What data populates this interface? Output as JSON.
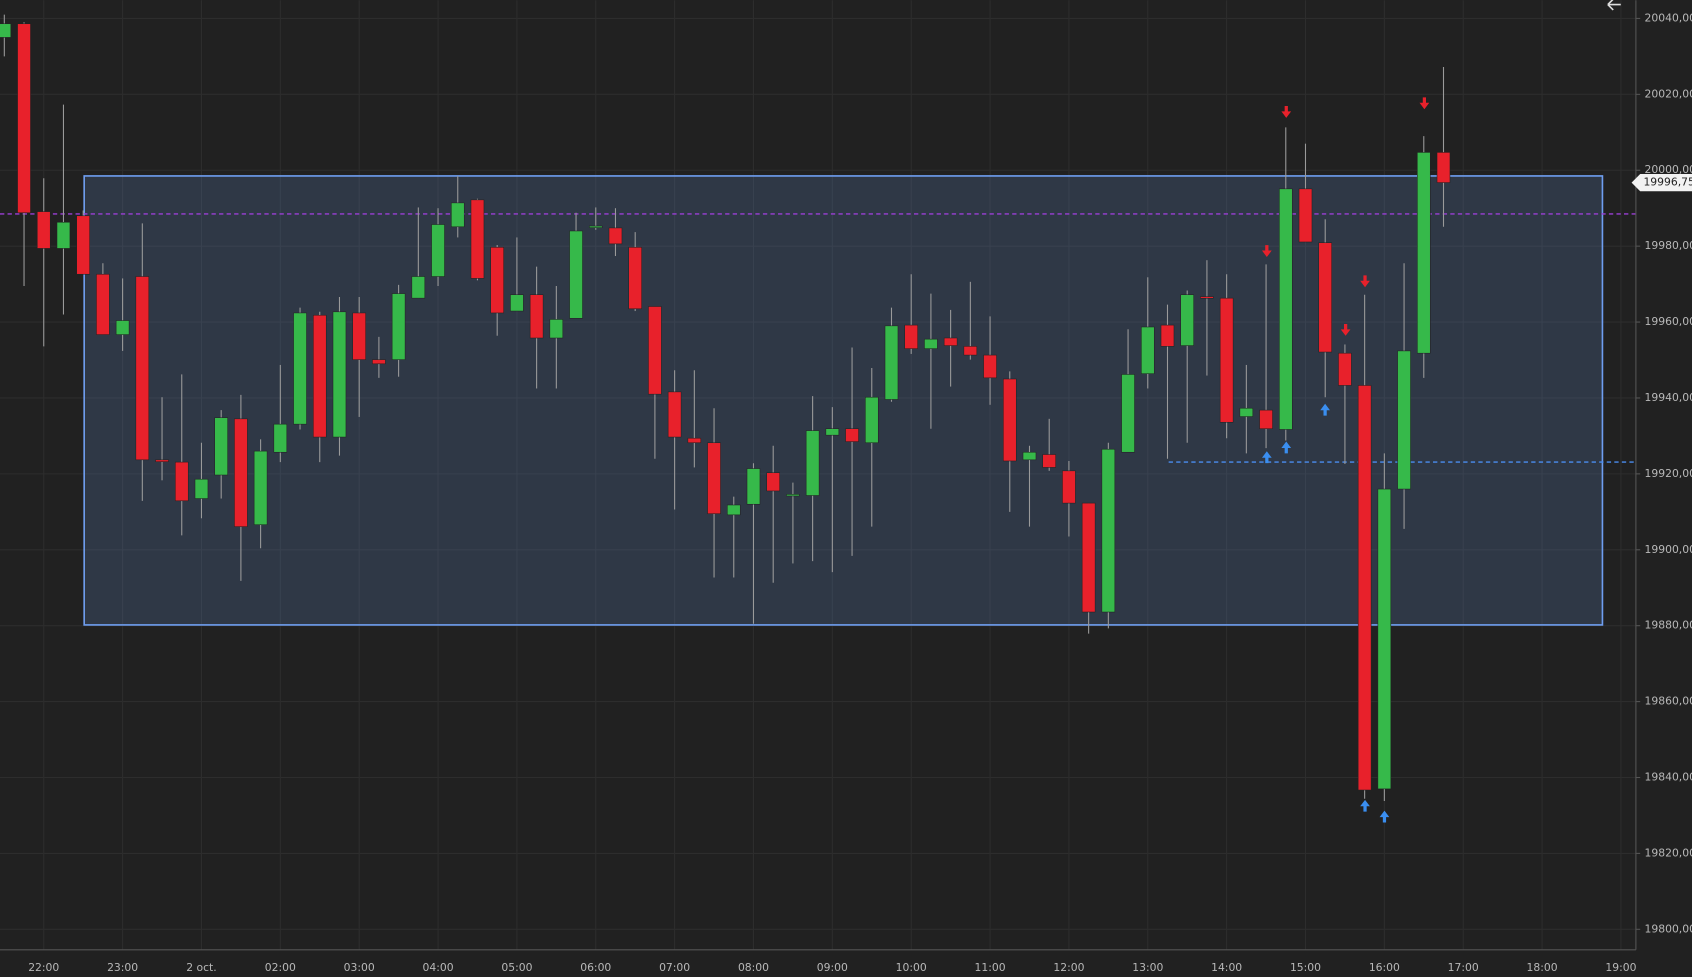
{
  "chart_data": {
    "type": "candlestick",
    "x_labels": [
      "22:00",
      "23:00",
      "2 oct.",
      "02:00",
      "03:00",
      "04:00",
      "05:00",
      "06:00",
      "07:00",
      "08:00",
      "09:00",
      "10:00",
      "11:00",
      "12:00",
      "13:00",
      "14:00",
      "15:00",
      "16:00",
      "17:00",
      "18:00",
      "19:00"
    ],
    "open": [
      20035,
      20038.6,
      19989.1,
      19979.4,
      19988,
      19972.6,
      19956.7,
      19972,
      19923.7,
      19923.1,
      19913.5,
      19919.7,
      19934.5,
      19906.6,
      19925.7,
      19933.1,
      19961.8,
      19929.7,
      19962.4,
      19950.1,
      19950.1,
      19966.3,
      19972,
      19985.1,
      19992.2,
      19979.7,
      19962.9,
      19967.2,
      19955.8,
      19961,
      19985.1,
      19984.8,
      19979.7,
      19964.1,
      19941.6,
      19929.4,
      19928.2,
      19909.2,
      19912,
      19920.3,
      19914.4,
      19914.3,
      19930.2,
      19931.9,
      19928.2,
      19939.6,
      19959.2,
      19953,
      19955.8,
      19953.6,
      19951.3,
      19945,
      19923.7,
      19925.1,
      19920.8,
      19912.3,
      19883.6,
      19925.7,
      19946.4,
      19959.2,
      19953.8,
      19966.7,
      19966.3,
      19935.1,
      19936.8,
      19931.7,
      19995.1,
      19980.9,
      19951.8,
      19943.3,
      19837,
      19916,
      19951.8,
      20004.7
    ],
    "high": [
      20041,
      20039,
      19997.9,
      20017.3,
      19989.4,
      19975.5,
      19971.5,
      19986,
      19940.2,
      19946.2,
      19928.2,
      19936.8,
      19940.8,
      19929.1,
      19948.7,
      19963.8,
      19962.7,
      19966.6,
      19966.6,
      19956.1,
      19969.8,
      19990.2,
      19990,
      19998.5,
      19992.5,
      19980.3,
      19982.3,
      19974.6,
      19969.5,
      19988.8,
      19990.2,
      19990,
      19983.7,
      19964.1,
      19947.3,
      19947.3,
      19937.3,
      19914,
      19922.8,
      19927.4,
      19917.7,
      19940.5,
      19937.6,
      19953.3,
      19947.9,
      19963.8,
      19972.6,
      19967.5,
      19963.2,
      19970.6,
      19961.5,
      19947,
      19927.4,
      19934.5,
      19923.4,
      19912.3,
      19928.2,
      19958.1,
      19971.8,
      19964.6,
      19968.3,
      19976.3,
      19972.6,
      19948.7,
      19975.2,
      20011.3,
      20007,
      19987.1,
      19954.1,
      19967.2,
      19925.4,
      19975.5,
      20009,
      20027.2
    ],
    "low": [
      20030,
      19969.5,
      19953.6,
      19962,
      19972.6,
      19956.7,
      19952.4,
      19912.9,
      19918.3,
      19903.8,
      19908.3,
      19913.5,
      19891.8,
      19900.4,
      19923.1,
      19931.7,
      19923.1,
      19924.8,
      19935,
      19945.3,
      19945.6,
      19966.3,
      19969.5,
      19982.3,
      19971,
      19956.4,
      19962.9,
      19942.5,
      19942.5,
      19961,
      19984.3,
      19977.4,
      19962.9,
      19924,
      19910.6,
      19921.7,
      19892.7,
      19892.7,
      19880.5,
      19891.3,
      19896.4,
      19897,
      19894.1,
      19898.4,
      19906.1,
      19939,
      19951.6,
      19931.9,
      19943,
      19950.1,
      19938.2,
      19910,
      19906.1,
      19920.8,
      19903.5,
      19877.9,
      19879.3,
      19925.7,
      19942.5,
      19924,
      19928.2,
      19945.9,
      19929.4,
      19925.4,
      19926.8,
      19928.8,
      19981.1,
      19940.2,
      19922.6,
      19834.4,
      19833.8,
      19905.5,
      19945.3,
      19985.1
    ],
    "close": [
      20038.6,
      19988.8,
      19979.4,
      19986.3,
      19972.6,
      19956.7,
      19960.4,
      19923.7,
      19923.2,
      19912.9,
      19918.6,
      19934.8,
      19906.1,
      19926,
      19933.1,
      19962.4,
      19929.7,
      19962.7,
      19950.1,
      19949,
      19967.5,
      19972,
      19985.7,
      19991.4,
      19971.5,
      19962.4,
      19967.2,
      19955.8,
      19960.7,
      19984,
      19985.3,
      19980.6,
      19963.5,
      19941,
      19929.7,
      19928.2,
      19909.5,
      19911.8,
      19921.4,
      19915.5,
      19914.6,
      19931.4,
      19931.9,
      19928.5,
      19940.2,
      19959,
      19953,
      19955.5,
      19953.8,
      19951.3,
      19945.3,
      19923.4,
      19925.7,
      19921.7,
      19912.3,
      19883.6,
      19926.5,
      19946.2,
      19958.7,
      19953.6,
      19967.2,
      19966.5,
      19933.6,
      19937.3,
      19931.9,
      19995.1,
      19981.1,
      19952.1,
      19943.3,
      19836.7,
      19916,
      19952.4,
      20004.7,
      19996.75
    ],
    "up_color": "#36b94a",
    "down_color": "#e8212b",
    "ylim": [
      19794.6,
      20044.8
    ],
    "yticks": [
      {
        "value": 19800,
        "label": "19800,00"
      },
      {
        "value": 19820,
        "label": "19820,00"
      },
      {
        "value": 19840,
        "label": "19840,00"
      },
      {
        "value": 19860,
        "label": "19860,00"
      },
      {
        "value": 19880,
        "label": "19880,00"
      },
      {
        "value": 19900,
        "label": "19900,00"
      },
      {
        "value": 19920,
        "label": "19920,00"
      },
      {
        "value": 19940,
        "label": "19940,00"
      },
      {
        "value": 19960,
        "label": "19960,00"
      },
      {
        "value": 19980,
        "label": "19980,00"
      },
      {
        "value": 20000,
        "label": "20000,00"
      },
      {
        "value": 20020,
        "label": "20020,00"
      },
      {
        "value": 20040,
        "label": "20040,00"
      }
    ],
    "grid": true,
    "zone": {
      "top": 19998.5,
      "bottom": 19880.2,
      "color": "#6f9ef0"
    },
    "level_line": {
      "value": 19988.5,
      "color": "#9b3fd6"
    },
    "support_line": {
      "value": 19923.1,
      "color": "#4a8df0"
    },
    "last_price": {
      "value": 19996.75,
      "label": "19996,75"
    }
  }
}
